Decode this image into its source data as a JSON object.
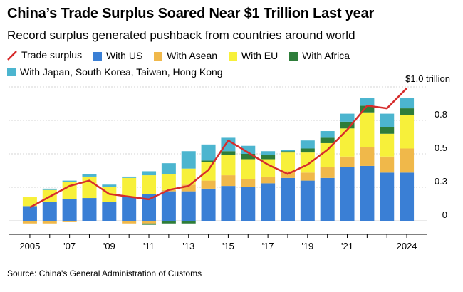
{
  "title": "China’s Trade Surplus Soared Near $1 Trillion Last year",
  "subtitle": "Record surplus generated pushback from countries around world",
  "source": "Source: China's General Administration of Customs",
  "legend": [
    {
      "label": "Trade surplus",
      "color": "#d62c2c",
      "kind": "line"
    },
    {
      "label": "With US",
      "color": "#3a7fd5",
      "kind": "box"
    },
    {
      "label": "With Asean",
      "color": "#f0b84a",
      "kind": "box"
    },
    {
      "label": "With EU",
      "color": "#f7f03a",
      "kind": "box"
    },
    {
      "label": "With Africa",
      "color": "#2e7d3a",
      "kind": "box"
    },
    {
      "label": "With Japan, South Korea, Taiwan, Hong Kong",
      "color": "#4cb5cf",
      "kind": "box"
    }
  ],
  "chart_data": {
    "type": "bar",
    "stacked": true,
    "x": [
      2005,
      2006,
      2007,
      2008,
      2009,
      2010,
      2011,
      2012,
      2013,
      2014,
      2015,
      2016,
      2017,
      2018,
      2019,
      2020,
      2021,
      2022,
      2023,
      2024
    ],
    "x_tick_labels": [
      "2005",
      "'07",
      "'09",
      "'11",
      "'13",
      "'15",
      "'17",
      "'19",
      "'21",
      "2024"
    ],
    "x_tick_years": [
      2005,
      2007,
      2009,
      2011,
      2013,
      2015,
      2017,
      2019,
      2021,
      2024
    ],
    "y_tick_labels": [
      "0",
      "0.3",
      "0.5",
      "0.8",
      "$1.0 trillion"
    ],
    "y_tick_values": [
      0,
      0.25,
      0.5,
      0.75,
      1.0
    ],
    "ylim": [
      -0.04,
      1.0
    ],
    "grid": true,
    "series": [
      {
        "name": "With US",
        "color": "#3a7fd5",
        "values": [
          0.11,
          0.14,
          0.16,
          0.17,
          0.14,
          0.18,
          0.2,
          0.22,
          0.22,
          0.24,
          0.26,
          0.25,
          0.28,
          0.32,
          0.3,
          0.32,
          0.4,
          0.41,
          0.36,
          0.36
        ]
      },
      {
        "name": "With Asean",
        "color": "#f0b84a",
        "values": [
          -0.02,
          -0.02,
          -0.01,
          0.0,
          0.0,
          -0.02,
          -0.02,
          0.01,
          0.05,
          0.06,
          0.08,
          0.06,
          0.05,
          0.05,
          0.06,
          0.08,
          0.08,
          0.14,
          0.12,
          0.18
        ]
      },
      {
        "name": "With EU",
        "color": "#f7f03a",
        "values": [
          0.07,
          0.09,
          0.13,
          0.16,
          0.11,
          0.14,
          0.14,
          0.12,
          0.12,
          0.14,
          0.15,
          0.15,
          0.13,
          0.14,
          0.15,
          0.18,
          0.21,
          0.26,
          0.17,
          0.25
        ]
      },
      {
        "name": "With Africa",
        "color": "#2e7d3a",
        "values": [
          0.0,
          0.0,
          0.0,
          0.0,
          0.0,
          0.0,
          -0.01,
          -0.02,
          -0.02,
          0.01,
          0.03,
          0.04,
          0.03,
          0.01,
          0.03,
          0.04,
          0.05,
          0.05,
          0.05,
          0.05
        ]
      },
      {
        "name": "With Japan, South Korea, Taiwan, Hong Kong",
        "color": "#4cb5cf",
        "values": [
          0.0,
          0.01,
          0.01,
          0.02,
          0.02,
          0.01,
          0.03,
          0.08,
          0.13,
          0.12,
          0.1,
          0.06,
          0.03,
          0.01,
          0.06,
          0.05,
          0.06,
          0.06,
          0.1,
          0.08
        ]
      }
    ],
    "line": {
      "name": "Trade surplus",
      "color": "#d62c2c",
      "values": [
        0.1,
        0.18,
        0.26,
        0.3,
        0.2,
        0.18,
        0.16,
        0.23,
        0.26,
        0.38,
        0.6,
        0.51,
        0.42,
        0.35,
        0.42,
        0.53,
        0.68,
        0.86,
        0.84,
        0.99
      ]
    }
  }
}
